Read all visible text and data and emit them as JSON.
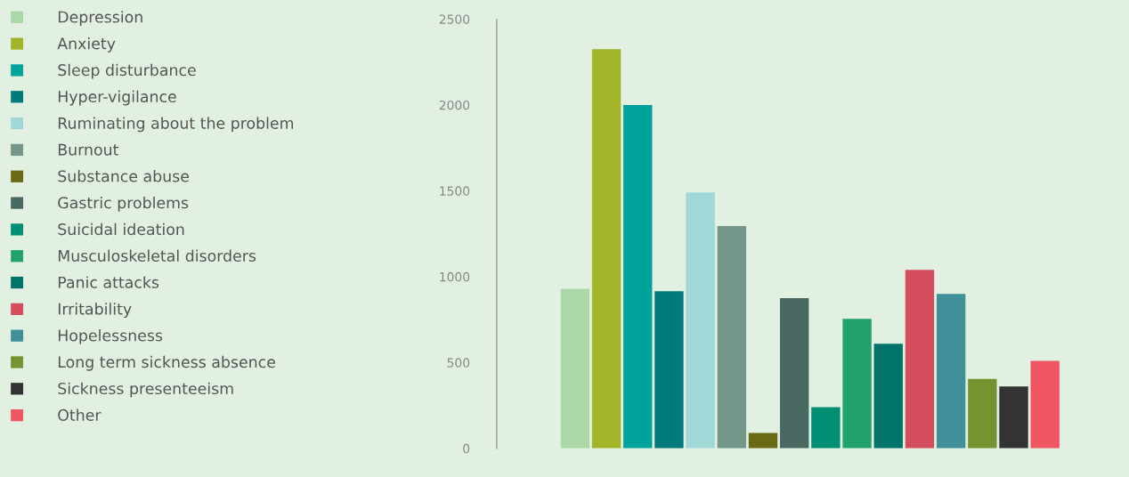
{
  "chart_data": {
    "type": "bar",
    "categories": [
      null
    ],
    "series": [
      {
        "name": "Depression",
        "color": "#acd8a7",
        "values": [
          930
        ]
      },
      {
        "name": "Anxiety",
        "color": "#a2b529",
        "values": [
          2325
        ]
      },
      {
        "name": "Sleep disturbance",
        "color": "#00a39b",
        "values": [
          2000
        ]
      },
      {
        "name": "Hyper-vigilance",
        "color": "#007a7a",
        "values": [
          915
        ]
      },
      {
        "name": "Ruminating about the problem",
        "color": "#9fd8d6",
        "values": [
          1490
        ]
      },
      {
        "name": "Burnout",
        "color": "#74978a",
        "values": [
          1295
        ]
      },
      {
        "name": "Substance abuse",
        "color": "#6a6a15",
        "values": [
          90
        ]
      },
      {
        "name": "Gastric problems",
        "color": "#4a6962",
        "values": [
          875
        ]
      },
      {
        "name": "Suicidal ideation",
        "color": "#008f75",
        "values": [
          240
        ]
      },
      {
        "name": "Musculoskeletal disorders",
        "color": "#21a16d",
        "values": [
          755
        ]
      },
      {
        "name": "Panic attacks",
        "color": "#00736b",
        "values": [
          610
        ]
      },
      {
        "name": "Irritability",
        "color": "#d44d5c",
        "values": [
          1040
        ]
      },
      {
        "name": "Hopelessness",
        "color": "#418f98",
        "values": [
          900
        ]
      },
      {
        "name": "Long term sickness absence",
        "color": "#779230",
        "values": [
          405
        ]
      },
      {
        "name": "Sickness presenteeism",
        "color": "#333333",
        "values": [
          360
        ]
      },
      {
        "name": "Other",
        "color": "#ef5662",
        "values": [
          510
        ]
      }
    ],
    "ylim": [
      0,
      2500
    ],
    "yticks": [
      0,
      500,
      1000,
      1500,
      2000,
      2500
    ],
    "grid": false,
    "legend": "left"
  }
}
